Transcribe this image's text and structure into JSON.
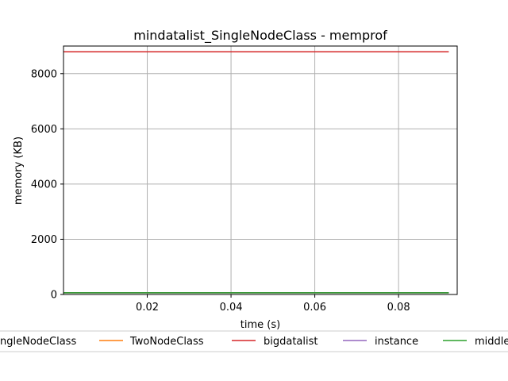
{
  "chart_data": {
    "type": "line",
    "title": "mindatalist_SingleNodeClass - memprof",
    "xlabel": "time (s)",
    "ylabel": "memory (KB)",
    "xlim": [
      0.0,
      0.094
    ],
    "ylim": [
      0,
      9000
    ],
    "xticks": [
      0.02,
      0.04,
      0.06,
      0.08
    ],
    "xtick_labels": [
      "0.02",
      "0.04",
      "0.06",
      "0.08"
    ],
    "yticks": [
      0,
      2000,
      4000,
      6000,
      8000
    ],
    "ytick_labels": [
      "0",
      "2000",
      "4000",
      "6000",
      "8000"
    ],
    "grid": true,
    "legend_position": "below plot, clipped at both edges",
    "legend_visible_labels": [
      "ngleNodeClass",
      "TwoNodeClass",
      "bigdatalist",
      "instance",
      "middle"
    ],
    "series": [
      {
        "name": "SingleNodeClass",
        "color": "#1f77b4",
        "x": [
          0.0,
          0.092
        ],
        "y": [
          60,
          60
        ]
      },
      {
        "name": "TwoNodeClass",
        "color": "#ff7f0e",
        "x": [
          0.0,
          0.092
        ],
        "y": [
          60,
          60
        ]
      },
      {
        "name": "bigdatalist",
        "color": "#d62728",
        "x": [
          0.0,
          0.092
        ],
        "y": [
          8790,
          8790
        ]
      },
      {
        "name": "instance",
        "color": "#9467bd",
        "x": [
          0.0,
          0.092
        ],
        "y": [
          60,
          60
        ]
      },
      {
        "name": "middle",
        "color": "#2ca02c",
        "x": [
          0.0,
          0.092
        ],
        "y": [
          60,
          60
        ]
      }
    ]
  }
}
